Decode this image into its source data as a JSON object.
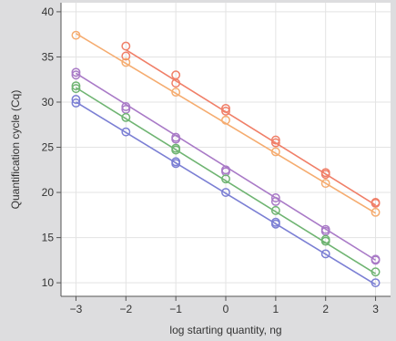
{
  "chart_data": {
    "type": "scatter",
    "xlabel": "log starting quantity, ng",
    "ylabel": "Quantification cycle (Cq)",
    "xlim": [
      -3.3,
      3.3
    ],
    "ylim": [
      8.5,
      41
    ],
    "xticks": [
      -3,
      -2,
      -1,
      0,
      1,
      2,
      3
    ],
    "xtick_labels": [
      "−3",
      "−2",
      "−1",
      "0",
      "1",
      "2",
      "3"
    ],
    "yticks": [
      10,
      15,
      20,
      25,
      30,
      35,
      40
    ],
    "ytick_labels": [
      "10",
      "15",
      "20",
      "25",
      "30",
      "35",
      "40"
    ],
    "grid": true,
    "plot_background": "#ffffff",
    "page_background": "#dddddf",
    "series": [
      {
        "color": "#f07f68",
        "x": [
          -2,
          -2,
          -1,
          -1,
          0,
          0,
          1,
          1,
          2,
          2,
          3,
          3
        ],
        "y": [
          36.2,
          35.1,
          33.0,
          32.1,
          29.3,
          29.0,
          25.8,
          25.5,
          22.2,
          22.0,
          18.9,
          18.8
        ],
        "fit": [
          [
            -2,
            35.8
          ],
          [
            3,
            18.6
          ]
        ]
      },
      {
        "color": "#f5ac70",
        "x": [
          -3,
          -2,
          -1,
          0,
          1,
          2,
          3
        ],
        "y": [
          37.4,
          34.4,
          31.1,
          28.0,
          24.5,
          21.0,
          17.8
        ],
        "fit": [
          [
            -3,
            37.6
          ],
          [
            3,
            17.7
          ]
        ]
      },
      {
        "color": "#a97ac7",
        "x": [
          -3,
          -3,
          -2,
          -2,
          -1,
          -1,
          0,
          0,
          1,
          1,
          2,
          2,
          3,
          3
        ],
        "y": [
          33.3,
          33.0,
          29.5,
          29.2,
          26.1,
          25.9,
          22.5,
          22.3,
          19.4,
          19.0,
          15.9,
          15.7,
          12.6,
          12.5
        ],
        "fit": [
          [
            -3,
            33.2
          ],
          [
            3,
            12.5
          ]
        ]
      },
      {
        "color": "#6fb472",
        "x": [
          -3,
          -3,
          -2,
          -1,
          -1,
          0,
          1,
          2,
          2,
          3
        ],
        "y": [
          31.8,
          31.5,
          28.3,
          24.9,
          24.7,
          21.5,
          18.0,
          14.8,
          14.6,
          11.2
        ],
        "fit": [
          [
            -3,
            31.6
          ],
          [
            3,
            11.0
          ]
        ]
      },
      {
        "color": "#7b7fd4",
        "x": [
          -3,
          -3,
          -2,
          -1,
          -1,
          0,
          1,
          1,
          2,
          3
        ],
        "y": [
          30.3,
          29.9,
          26.7,
          23.4,
          23.2,
          20.0,
          16.7,
          16.5,
          13.2,
          10.0
        ],
        "fit": [
          [
            -3,
            30.0
          ],
          [
            3,
            9.8
          ]
        ]
      }
    ]
  }
}
